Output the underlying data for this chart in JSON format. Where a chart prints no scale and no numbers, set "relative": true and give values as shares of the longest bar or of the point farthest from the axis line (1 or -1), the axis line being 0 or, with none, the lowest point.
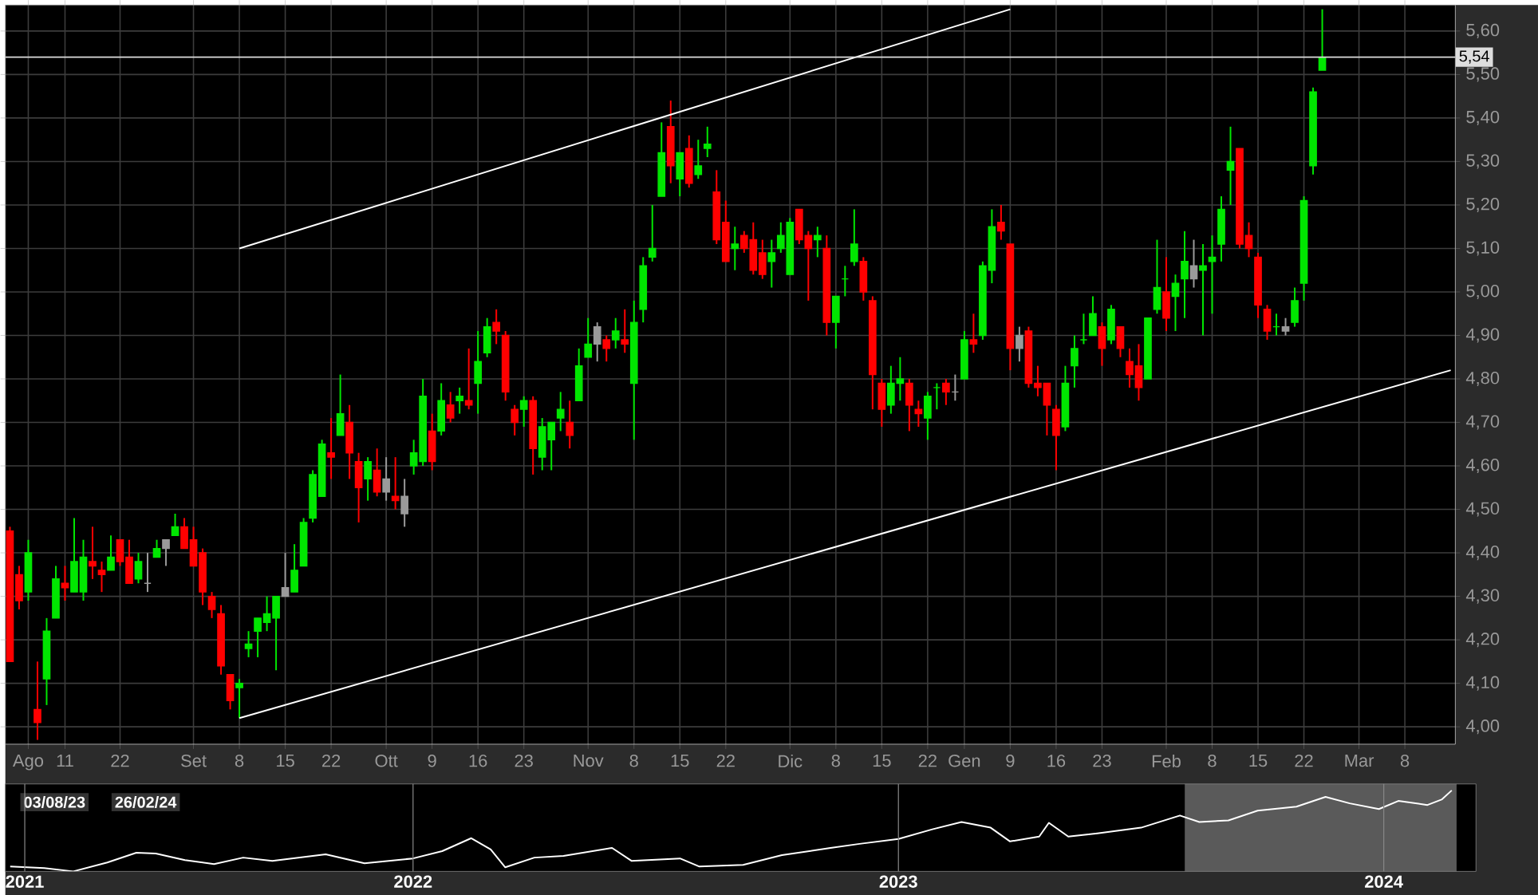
{
  "chart_data": [
    {
      "type": "candlestick",
      "categories": [
        null,
        null,
        "Ago",
        null,
        null,
        null,
        "11",
        null,
        null,
        null,
        null,
        null,
        "22",
        null,
        null,
        null,
        null,
        null,
        null,
        null,
        "Set",
        null,
        null,
        null,
        null,
        "8",
        null,
        null,
        null,
        null,
        "15",
        null,
        null,
        null,
        null,
        "22",
        null,
        null,
        null,
        null,
        null,
        "Ott",
        null,
        null,
        null,
        null,
        "9",
        null,
        null,
        null,
        null,
        "16",
        null,
        null,
        null,
        null,
        "23",
        null,
        null,
        null,
        null,
        null,
        null,
        "Nov",
        null,
        null,
        null,
        null,
        "8",
        null,
        null,
        null,
        null,
        "15",
        null,
        null,
        null,
        null,
        "22",
        null,
        null,
        null,
        null,
        null,
        null,
        "Dic",
        null,
        null,
        null,
        null,
        "8",
        null,
        null,
        null,
        null,
        "15",
        null,
        null,
        null,
        null,
        "22",
        null,
        null,
        null,
        "Gen",
        null,
        null,
        null,
        null,
        "9",
        null,
        null,
        null,
        null,
        "16",
        null,
        null,
        null,
        null,
        "23",
        null,
        null,
        null,
        null,
        null,
        null,
        "Feb",
        null,
        null,
        null,
        null,
        "8",
        null,
        null,
        null,
        null,
        "15",
        null,
        null,
        null,
        null,
        "22",
        null,
        null,
        null,
        null,
        null,
        "Mar",
        null,
        null,
        null,
        null,
        "8",
        null,
        null,
        null,
        null,
        null
      ],
      "ohlc": [
        [
          4.45,
          4.46,
          4.15,
          4.15
        ],
        [
          4.35,
          4.37,
          4.27,
          4.29
        ],
        [
          4.31,
          4.43,
          4.29,
          4.4
        ],
        [
          4.04,
          4.15,
          3.97,
          4.01
        ],
        [
          4.11,
          4.25,
          4.05,
          4.22
        ],
        [
          4.25,
          4.37,
          4.25,
          4.34
        ],
        [
          4.33,
          4.37,
          4.29,
          4.32
        ],
        [
          4.31,
          4.48,
          4.31,
          4.38
        ],
        [
          4.31,
          4.43,
          4.29,
          4.39
        ],
        [
          4.38,
          4.46,
          4.34,
          4.37
        ],
        [
          4.36,
          4.38,
          4.31,
          4.35
        ],
        [
          4.36,
          4.44,
          4.36,
          4.39
        ],
        [
          4.43,
          4.43,
          4.37,
          4.38
        ],
        [
          4.39,
          4.43,
          4.33,
          4.33
        ],
        [
          4.34,
          4.4,
          4.33,
          4.38
        ],
        [
          4.33,
          4.4,
          4.31,
          4.33
        ],
        [
          4.39,
          4.43,
          4.39,
          4.41
        ],
        [
          4.41,
          4.43,
          4.37,
          4.43
        ],
        [
          4.44,
          4.49,
          4.44,
          4.46
        ],
        [
          4.46,
          4.48,
          4.41,
          4.41
        ],
        [
          4.43,
          4.46,
          4.37,
          4.37
        ],
        [
          4.4,
          4.41,
          4.28,
          4.31
        ],
        [
          4.3,
          4.31,
          4.25,
          4.27
        ],
        [
          4.26,
          4.28,
          4.12,
          4.14
        ],
        [
          4.12,
          4.12,
          4.04,
          4.06
        ],
        [
          4.09,
          4.11,
          4.02,
          4.1
        ],
        [
          4.18,
          4.22,
          4.16,
          4.19
        ],
        [
          4.22,
          4.25,
          4.16,
          4.25
        ],
        [
          4.24,
          4.3,
          4.22,
          4.26
        ],
        [
          4.25,
          4.3,
          4.13,
          4.3
        ],
        [
          4.3,
          4.4,
          4.3,
          4.32
        ],
        [
          4.31,
          4.42,
          4.31,
          4.36
        ],
        [
          4.37,
          4.48,
          4.37,
          4.47
        ],
        [
          4.48,
          4.59,
          4.47,
          4.58
        ],
        [
          4.53,
          4.66,
          4.53,
          4.65
        ],
        [
          4.63,
          4.71,
          4.57,
          4.62
        ],
        [
          4.67,
          4.81,
          4.67,
          4.72
        ],
        [
          4.7,
          4.74,
          4.57,
          4.63
        ],
        [
          4.61,
          4.63,
          4.47,
          4.55
        ],
        [
          4.57,
          4.62,
          4.52,
          4.61
        ],
        [
          4.59,
          4.64,
          4.53,
          4.54
        ],
        [
          4.57,
          4.62,
          4.52,
          4.54
        ],
        [
          4.53,
          4.62,
          4.5,
          4.52
        ],
        [
          4.53,
          4.57,
          4.46,
          4.49
        ],
        [
          4.6,
          4.66,
          4.58,
          4.63
        ],
        [
          4.61,
          4.8,
          4.6,
          4.76
        ],
        [
          4.68,
          4.72,
          4.59,
          4.61
        ],
        [
          4.68,
          4.79,
          4.67,
          4.75
        ],
        [
          4.74,
          4.77,
          4.7,
          4.71
        ],
        [
          4.75,
          4.78,
          4.72,
          4.76
        ],
        [
          4.75,
          4.87,
          4.73,
          4.74
        ],
        [
          4.79,
          4.91,
          4.72,
          4.84
        ],
        [
          4.86,
          4.94,
          4.85,
          4.92
        ],
        [
          4.93,
          4.96,
          4.88,
          4.91
        ],
        [
          4.9,
          4.91,
          4.75,
          4.77
        ],
        [
          4.73,
          4.74,
          4.67,
          4.7
        ],
        [
          4.73,
          4.76,
          4.69,
          4.75
        ],
        [
          4.75,
          4.76,
          4.58,
          4.64
        ],
        [
          4.62,
          4.71,
          4.59,
          4.69
        ],
        [
          4.66,
          4.7,
          4.59,
          4.7
        ],
        [
          4.71,
          4.77,
          4.68,
          4.73
        ],
        [
          4.7,
          4.75,
          4.64,
          4.67
        ],
        [
          4.75,
          4.87,
          4.75,
          4.83
        ],
        [
          4.85,
          4.94,
          4.85,
          4.88
        ],
        [
          4.88,
          4.93,
          4.84,
          4.92
        ],
        [
          4.89,
          4.9,
          4.84,
          4.87
        ],
        [
          4.89,
          4.94,
          4.87,
          4.91
        ],
        [
          4.89,
          4.96,
          4.86,
          4.88
        ],
        [
          4.79,
          4.98,
          4.66,
          4.93
        ],
        [
          4.96,
          5.08,
          4.93,
          5.06
        ],
        [
          5.08,
          5.2,
          5.07,
          5.1
        ],
        [
          5.22,
          5.39,
          5.22,
          5.32
        ],
        [
          5.38,
          5.44,
          5.25,
          5.29
        ],
        [
          5.26,
          5.32,
          5.22,
          5.32
        ],
        [
          5.33,
          5.36,
          5.24,
          5.25
        ],
        [
          5.27,
          5.35,
          5.26,
          5.29
        ],
        [
          5.33,
          5.38,
          5.31,
          5.34
        ],
        [
          5.23,
          5.28,
          5.11,
          5.12
        ],
        [
          5.16,
          5.21,
          5.07,
          5.07
        ],
        [
          5.1,
          5.15,
          5.05,
          5.11
        ],
        [
          5.13,
          5.14,
          5.09,
          5.1
        ],
        [
          5.12,
          5.16,
          5.04,
          5.05
        ],
        [
          5.09,
          5.12,
          5.03,
          5.04
        ],
        [
          5.07,
          5.12,
          5.01,
          5.09
        ],
        [
          5.1,
          5.16,
          5.09,
          5.13
        ],
        [
          5.04,
          5.17,
          5.04,
          5.16
        ],
        [
          5.19,
          5.19,
          5.11,
          5.12
        ],
        [
          5.13,
          5.14,
          4.98,
          5.1
        ],
        [
          5.12,
          5.15,
          5.08,
          5.13
        ],
        [
          5.1,
          5.13,
          4.9,
          4.93
        ],
        [
          4.93,
          4.99,
          4.87,
          4.99
        ],
        [
          5.03,
          5.06,
          4.99,
          5.03
        ],
        [
          5.07,
          5.19,
          5.06,
          5.11
        ],
        [
          5.07,
          5.08,
          4.98,
          5.0
        ],
        [
          4.98,
          4.99,
          4.73,
          4.81
        ],
        [
          4.79,
          4.8,
          4.69,
          4.73
        ],
        [
          4.74,
          4.83,
          4.72,
          4.79
        ],
        [
          4.79,
          4.85,
          4.75,
          4.8
        ],
        [
          4.79,
          4.8,
          4.68,
          4.74
        ],
        [
          4.73,
          4.75,
          4.69,
          4.72
        ],
        [
          4.71,
          4.77,
          4.66,
          4.76
        ],
        [
          4.78,
          4.79,
          4.73,
          4.78
        ],
        [
          4.79,
          4.8,
          4.74,
          4.77
        ],
        [
          4.77,
          4.81,
          4.75,
          4.77
        ],
        [
          4.8,
          4.91,
          4.8,
          4.89
        ],
        [
          4.89,
          4.95,
          4.86,
          4.88
        ],
        [
          4.9,
          5.07,
          4.89,
          5.06
        ],
        [
          5.05,
          5.19,
          5.02,
          5.15
        ],
        [
          5.16,
          5.2,
          5.12,
          5.14
        ],
        [
          5.11,
          5.11,
          4.82,
          4.87
        ],
        [
          4.87,
          4.92,
          4.84,
          4.9
        ],
        [
          4.91,
          4.92,
          4.78,
          4.79
        ],
        [
          4.79,
          4.83,
          4.76,
          4.78
        ],
        [
          4.79,
          4.79,
          4.67,
          4.74
        ],
        [
          4.73,
          4.74,
          4.59,
          4.67
        ],
        [
          4.69,
          4.83,
          4.68,
          4.79
        ],
        [
          4.83,
          4.9,
          4.78,
          4.87
        ],
        [
          4.89,
          4.95,
          4.88,
          4.89
        ],
        [
          4.9,
          4.99,
          4.9,
          4.95
        ],
        [
          4.92,
          4.93,
          4.83,
          4.87
        ],
        [
          4.89,
          4.97,
          4.88,
          4.96
        ],
        [
          4.92,
          4.92,
          4.85,
          4.87
        ],
        [
          4.84,
          4.87,
          4.78,
          4.81
        ],
        [
          4.83,
          4.88,
          4.75,
          4.78
        ],
        [
          4.8,
          4.94,
          4.8,
          4.94
        ],
        [
          4.96,
          5.12,
          4.95,
          5.01
        ],
        [
          5.0,
          5.08,
          4.91,
          4.94
        ],
        [
          4.99,
          5.04,
          4.91,
          5.02
        ],
        [
          5.03,
          5.14,
          4.94,
          5.07
        ],
        [
          5.06,
          5.12,
          5.01,
          5.03
        ],
        [
          5.05,
          5.11,
          4.9,
          5.06
        ],
        [
          5.07,
          5.13,
          4.95,
          5.08
        ],
        [
          5.11,
          5.22,
          5.07,
          5.19
        ],
        [
          5.28,
          5.38,
          5.2,
          5.3
        ],
        [
          5.33,
          5.33,
          5.1,
          5.11
        ],
        [
          5.13,
          5.16,
          5.08,
          5.1
        ],
        [
          5.08,
          5.09,
          4.94,
          4.97
        ],
        [
          4.96,
          4.97,
          4.89,
          4.91
        ],
        [
          4.92,
          4.95,
          4.9,
          4.92
        ],
        [
          4.92,
          4.94,
          4.9,
          4.91
        ],
        [
          4.93,
          5.01,
          4.92,
          4.98
        ],
        [
          5.02,
          5.22,
          4.98,
          5.21
        ],
        [
          5.29,
          5.47,
          5.27,
          5.46
        ],
        [
          5.51,
          5.65,
          5.51,
          5.54
        ],
        null,
        null,
        null,
        null,
        null,
        null,
        null,
        null,
        null,
        null,
        null,
        null,
        null,
        null
      ],
      "colors": [
        "#ff0000",
        "#ff0000",
        "#00e600",
        "#ff0000",
        "#00e600",
        "#00e600",
        "#ff0000",
        "#00e600",
        "#00e600",
        "#ff0000",
        "#ff0000",
        "#00e600",
        "#ff0000",
        "#ff0000",
        "#00e600",
        "#9a9a9a",
        "#00e600",
        "#9a9a9a",
        "#00e600",
        "#ff0000",
        "#ff0000",
        "#ff0000",
        "#ff0000",
        "#ff0000",
        "#ff0000",
        "#00e600",
        "#00e600",
        "#00e600",
        "#00e600",
        "#00e600",
        "#9a9a9a",
        "#00e600",
        "#00e600",
        "#00e600",
        "#00e600",
        "#ff0000",
        "#00e600",
        "#ff0000",
        "#ff0000",
        "#00e600",
        "#ff0000",
        "#9a9a9a",
        "#ff0000",
        "#9a9a9a",
        "#00e600",
        "#00e600",
        "#ff0000",
        "#00e600",
        "#ff0000",
        "#00e600",
        "#ff0000",
        "#00e600",
        "#00e600",
        "#ff0000",
        "#ff0000",
        "#ff0000",
        "#00e600",
        "#ff0000",
        "#00e600",
        "#00e600",
        "#00e600",
        "#ff0000",
        "#00e600",
        "#00e600",
        "#9a9a9a",
        "#ff0000",
        "#00e600",
        "#ff0000",
        "#00e600",
        "#00e600",
        "#00e600",
        "#00e600",
        "#ff0000",
        "#00e600",
        "#ff0000",
        "#00e600",
        "#00e600",
        "#ff0000",
        "#ff0000",
        "#00e600",
        "#ff0000",
        "#ff0000",
        "#ff0000",
        "#00e600",
        "#00e600",
        "#00e600",
        "#ff0000",
        "#ff0000",
        "#00e600",
        "#ff0000",
        "#00e600",
        "#00e600",
        "#00e600",
        "#ff0000",
        "#ff0000",
        "#ff0000",
        "#00e600",
        "#00e600",
        "#ff0000",
        "#ff0000",
        "#00e600",
        "#00e600",
        "#ff0000",
        "#9a9a9a",
        "#00e600",
        "#ff0000",
        "#00e600",
        "#00e600",
        "#ff0000",
        "#ff0000",
        "#9a9a9a",
        "#ff0000",
        "#ff0000",
        "#ff0000",
        "#ff0000",
        "#00e600",
        "#00e600",
        "#00e600",
        "#00e600",
        "#ff0000",
        "#00e600",
        "#ff0000",
        "#ff0000",
        "#ff0000",
        "#00e600",
        "#00e600",
        "#ff0000",
        "#00e600",
        "#00e600",
        "#9a9a9a",
        "#00e600",
        "#00e600",
        "#00e600",
        "#00e600",
        "#ff0000",
        "#ff0000",
        "#ff0000",
        "#ff0000",
        "#00e600",
        "#9a9a9a",
        "#00e600",
        "#00e600",
        "#00e600",
        "#00e600",
        null,
        null,
        null,
        null,
        null,
        null,
        null,
        null,
        null,
        null,
        null,
        null,
        null,
        null
      ],
      "series": [
        {
          "type": "line",
          "color": "#ffffff",
          "values": [
            null,
            null,
            null,
            null,
            null,
            null,
            null,
            null,
            null,
            null,
            null,
            null,
            null,
            null,
            null,
            null,
            null,
            null,
            null,
            null,
            null,
            null,
            null,
            null,
            null,
            5.1,
            null,
            null,
            null,
            null,
            null,
            null,
            null,
            null,
            null,
            null,
            null,
            null,
            null,
            null,
            null,
            null,
            null,
            null,
            null,
            null,
            null,
            null,
            null,
            null,
            null,
            null,
            null,
            null,
            null,
            null,
            null,
            null,
            null,
            null,
            null,
            null,
            null,
            null,
            null,
            null,
            null,
            null,
            null,
            null,
            null,
            null,
            null,
            null,
            null,
            null,
            null,
            null,
            null,
            null,
            null,
            null,
            null,
            null,
            null,
            null,
            null,
            null,
            null,
            null,
            null,
            null,
            null,
            null,
            null,
            null,
            null,
            null,
            null,
            null,
            null,
            null,
            null,
            null,
            null,
            null,
            null,
            null,
            null,
            5.65,
            null,
            null,
            null,
            null,
            null,
            null,
            null,
            null,
            null,
            null,
            null,
            null,
            null,
            null,
            null,
            null,
            null,
            null,
            null,
            null,
            null,
            null,
            null,
            null,
            null,
            null,
            null,
            null,
            null,
            null,
            null,
            null,
            null,
            null,
            null,
            null,
            null,
            null,
            null,
            null,
            null,
            null,
            null,
            null,
            null,
            null,
            null,
            null
          ]
        },
        {
          "type": "line",
          "color": "#ffffff",
          "values": [
            null,
            null,
            null,
            null,
            null,
            null,
            null,
            null,
            null,
            null,
            null,
            null,
            null,
            null,
            null,
            null,
            null,
            null,
            null,
            null,
            null,
            null,
            null,
            null,
            null,
            4.02,
            null,
            null,
            null,
            null,
            null,
            null,
            null,
            null,
            null,
            null,
            null,
            null,
            null,
            null,
            null,
            null,
            null,
            null,
            null,
            null,
            null,
            null,
            null,
            null,
            null,
            null,
            null,
            null,
            null,
            null,
            null,
            null,
            null,
            null,
            null,
            null,
            null,
            null,
            null,
            null,
            null,
            null,
            null,
            null,
            null,
            null,
            null,
            null,
            null,
            null,
            null,
            null,
            null,
            null,
            null,
            null,
            null,
            null,
            null,
            null,
            null,
            null,
            null,
            null,
            null,
            null,
            null,
            null,
            null,
            null,
            null,
            null,
            null,
            null,
            null,
            null,
            null,
            null,
            null,
            null,
            null,
            null,
            null,
            null,
            null,
            null,
            null,
            null,
            null,
            null,
            null,
            null,
            null,
            null,
            null,
            null,
            null,
            null,
            null,
            null,
            null,
            null,
            null,
            null,
            null,
            null,
            null,
            null,
            null,
            null,
            null,
            null,
            null,
            null,
            null,
            null,
            null,
            null,
            null,
            null,
            null,
            null,
            null,
            null,
            null,
            null,
            null,
            null,
            null,
            null,
            null,
            4.82
          ]
        }
      ],
      "ylim": [
        3.96,
        5.66
      ],
      "yticks": [
        {
          "value": 4.0,
          "label": "4,00"
        },
        {
          "value": 4.1,
          "label": "4,10"
        },
        {
          "value": 4.2,
          "label": "4,20"
        },
        {
          "value": 4.3,
          "label": "4,30"
        },
        {
          "value": 4.4,
          "label": "4,40"
        },
        {
          "value": 4.5,
          "label": "4,50"
        },
        {
          "value": 4.6,
          "label": "4,60"
        },
        {
          "value": 4.7,
          "label": "4,70"
        },
        {
          "value": 4.8,
          "label": "4,80"
        },
        {
          "value": 4.9,
          "label": "4,90"
        },
        {
          "value": 5.0,
          "label": "5,00"
        },
        {
          "value": 5.1,
          "label": "5,10"
        },
        {
          "value": 5.2,
          "label": "5,20"
        },
        {
          "value": 5.3,
          "label": "5,30"
        },
        {
          "value": 5.4,
          "label": "5,40"
        },
        {
          "value": 5.5,
          "label": "5,50"
        },
        {
          "value": 5.6,
          "label": "5,60"
        }
      ],
      "ref_lines": [
        {
          "axis": "y",
          "value": 5.54,
          "label": "5,54",
          "color": "#dddddd"
        }
      ],
      "grid": true
    },
    {
      "type": "line",
      "relative": true,
      "series": [
        {
          "color": "#ffffff",
          "x": [
            2021.17,
            2021.24,
            2021.3,
            2021.37,
            2021.43,
            2021.47,
            2021.53,
            2021.59,
            2021.65,
            2021.71,
            2021.82,
            2021.9,
            2022.0,
            2022.06,
            2022.12,
            2022.16,
            2022.19,
            2022.25,
            2022.31,
            2022.41,
            2022.45,
            2022.55,
            2022.59,
            2022.68,
            2022.76,
            2022.86,
            2022.92,
            2023.0,
            2023.07,
            2023.13,
            2023.19,
            2023.23,
            2023.29,
            2023.31,
            2023.35,
            2023.41,
            2023.5,
            2023.58,
            2023.62,
            2023.68,
            2023.74,
            2023.82,
            2023.88,
            2023.93,
            2023.99,
            2024.03,
            2024.09,
            2024.12,
            2024.14
          ],
          "values": [
            0.06,
            0.04,
            0,
            0.11,
            0.23,
            0.22,
            0.14,
            0.09,
            0.17,
            0.13,
            0.21,
            0.1,
            0.16,
            0.25,
            0.41,
            0.27,
            0.05,
            0.17,
            0.19,
            0.29,
            0.13,
            0.16,
            0.06,
            0.08,
            0.2,
            0.29,
            0.34,
            0.4,
            0.52,
            0.61,
            0.54,
            0.37,
            0.43,
            0.6,
            0.43,
            0.47,
            0.54,
            0.69,
            0.61,
            0.63,
            0.75,
            0.8,
            0.92,
            0.84,
            0.77,
            0.87,
            0.82,
            0.89,
            1
          ]
        }
      ],
      "xlim": [
        2021.16,
        2024.19
      ],
      "xticks": [
        {
          "value": 2021.2,
          "label": "2021"
        },
        2022,
        2023,
        2024
      ],
      "bands": [
        {
          "axis": "x",
          "from": 2023.59,
          "to": 2024.15,
          "color": "#5a5a5a"
        }
      ],
      "annotations": [
        "03/08/23",
        "26/02/24"
      ],
      "grid": "x"
    }
  ]
}
